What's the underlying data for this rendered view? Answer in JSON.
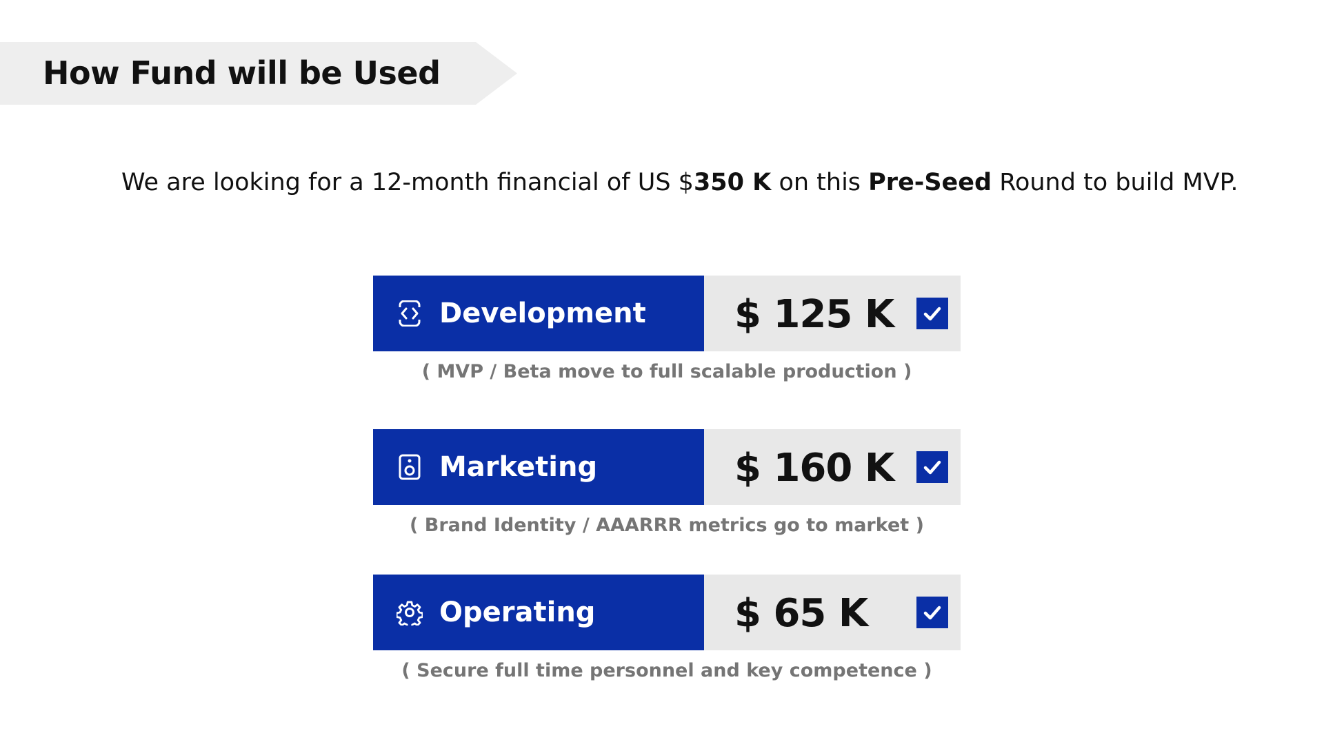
{
  "title": "How Fund will be Used",
  "intro": {
    "part1": "We are looking for a 12-month financial of US $",
    "amount": "350 K",
    "part2": " on this ",
    "round": "Pre-Seed",
    "part3": " Round to build MVP."
  },
  "items": [
    {
      "label": "Development",
      "icon": "code-brackets-icon",
      "amount": "$ 125 K",
      "checked": true,
      "caption": "( MVP / Beta move to full scalable production )"
    },
    {
      "label": "Marketing",
      "icon": "speaker-icon",
      "amount": "$ 160 K",
      "checked": true,
      "caption": "( Brand Identity / AAARRR metrics go to market )"
    },
    {
      "label": "Operating",
      "icon": "gear-icon",
      "amount": "$ 65 K",
      "checked": true,
      "caption": "( Secure full time personnel and key competence )"
    }
  ],
  "colors": {
    "accent": "#0a2fa6",
    "amount_bg": "#e8e8e8",
    "banner_bg": "#eeeeee",
    "caption": "#757575"
  }
}
